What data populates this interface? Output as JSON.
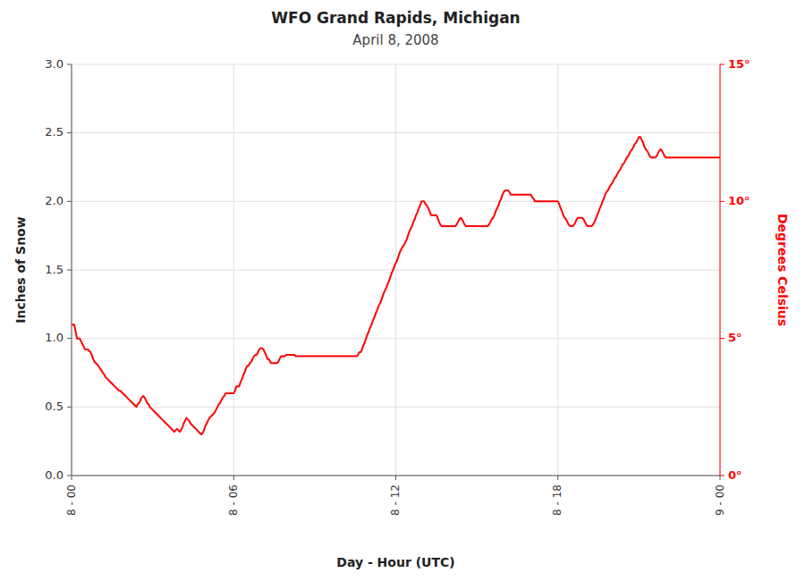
{
  "chart_data": {
    "type": "line",
    "title": "WFO Grand Rapids, Michigan",
    "subtitle": "April 8, 2008",
    "xlabel": "Day - Hour (UTC)",
    "ylabel": "Inches of Snow",
    "y2label": "Degrees Celsius",
    "color": "#FF0000",
    "grid": true,
    "xlim": [
      0,
      24
    ],
    "xticks": [
      {
        "value": 0,
        "label": "8 - 00"
      },
      {
        "value": 6,
        "label": "8 - 06"
      },
      {
        "value": 12,
        "label": "8 - 12"
      },
      {
        "value": 18,
        "label": "8 - 18"
      },
      {
        "value": 24,
        "label": "9 - 00"
      }
    ],
    "ylim": [
      0.0,
      3.0
    ],
    "yticks": [
      {
        "value": 0.0,
        "label": "0.0"
      },
      0.5,
      {
        "value": 1.0,
        "label": "1.0"
      },
      1.5,
      {
        "value": 2.0,
        "label": "2.0"
      },
      2.5,
      {
        "value": 3.0,
        "label": "3.0"
      }
    ],
    "y2lim": [
      0.0,
      15.0
    ],
    "y2ticks": [
      {
        "value": 0,
        "label": "0°"
      },
      {
        "value": 5,
        "label": "5°"
      },
      {
        "value": 10,
        "label": "10°"
      },
      {
        "value": 15,
        "label": "15°"
      }
    ],
    "x": [
      0.0,
      0.1,
      0.2,
      0.3,
      0.5,
      0.6,
      0.7,
      0.75,
      0.8,
      0.85,
      0.9,
      1.0,
      1.05,
      1.1,
      1.15,
      1.2,
      1.25,
      1.3,
      1.35,
      1.4,
      1.45,
      1.5,
      1.55,
      1.6,
      1.65,
      1.7,
      1.75,
      1.8,
      1.85,
      1.9,
      1.95,
      2.0,
      2.05,
      2.1,
      2.15,
      2.2,
      2.25,
      2.3,
      2.35,
      2.4,
      2.45,
      2.5,
      2.55,
      2.6,
      2.65,
      2.7,
      2.75,
      2.8,
      2.85,
      2.9,
      2.95,
      3.0,
      3.05,
      3.1,
      3.15,
      3.2,
      3.25,
      3.3,
      3.35,
      3.4,
      3.45,
      3.5,
      3.55,
      3.6,
      3.65,
      3.7,
      3.75,
      3.8,
      3.85,
      3.9,
      3.95,
      4.0,
      4.05,
      4.1,
      4.15,
      4.2,
      4.25,
      4.3,
      4.35,
      4.4,
      4.45,
      4.5,
      4.55,
      4.6,
      4.65,
      4.7,
      4.75,
      4.8,
      4.85,
      4.9,
      4.95,
      5.0,
      5.05,
      5.1,
      5.15,
      5.2,
      5.25,
      5.3,
      5.35,
      5.4,
      5.45,
      5.5,
      5.55,
      5.6,
      5.65,
      5.7,
      5.75,
      5.8,
      5.85,
      5.9,
      5.95,
      6.0,
      6.05,
      6.1,
      6.15,
      6.2,
      6.25,
      6.3,
      6.35,
      6.4,
      6.45,
      6.5,
      6.55,
      6.6,
      6.65,
      6.7,
      6.75,
      6.8,
      6.85,
      6.9,
      6.95,
      7.0,
      7.05,
      7.1,
      7.15,
      7.2,
      7.25,
      7.3,
      7.35,
      7.4,
      7.45,
      7.5,
      7.55,
      7.6,
      7.65,
      7.7,
      7.75,
      7.8,
      7.85,
      7.9,
      7.95,
      8.0,
      8.05,
      8.1,
      8.15,
      8.2,
      8.25,
      8.3,
      8.35,
      8.4,
      8.45,
      8.5,
      8.55,
      8.6,
      8.65,
      8.7,
      8.75,
      8.8,
      8.85,
      8.9,
      8.95,
      9.0,
      9.05,
      9.1,
      9.15,
      9.2,
      9.25,
      9.3,
      9.35,
      9.4,
      9.45,
      9.5,
      9.55,
      9.6,
      9.65,
      9.7,
      9.75,
      9.8,
      9.85,
      9.9,
      9.95,
      10.0,
      10.05,
      10.1,
      10.15,
      10.2,
      10.25,
      10.3,
      10.35,
      10.4,
      10.45,
      10.5,
      10.55,
      10.6,
      10.65,
      10.7,
      10.75,
      10.8,
      10.85,
      10.9,
      10.95,
      11.0,
      11.05,
      11.1,
      11.15,
      11.2,
      11.25,
      11.3,
      11.35,
      11.4,
      11.45,
      11.5,
      11.55,
      11.6,
      11.65,
      11.7,
      11.75,
      11.8,
      11.85,
      11.9,
      11.95,
      12.0,
      12.05,
      12.1,
      12.15,
      12.2,
      12.25,
      12.3,
      12.35,
      12.4,
      12.45,
      12.5,
      12.55,
      12.6,
      12.65,
      12.7,
      12.75,
      12.8,
      12.85,
      12.9,
      12.95,
      13.0,
      13.05,
      13.1,
      13.15,
      13.2,
      13.25,
      13.3,
      13.35,
      13.4,
      13.45,
      13.5,
      13.55,
      13.6,
      13.65,
      13.7,
      13.75,
      13.8,
      13.85,
      13.9,
      13.95,
      14.0,
      14.05,
      14.1,
      14.15,
      14.2,
      14.25,
      14.3,
      14.35,
      14.4,
      14.45,
      14.5,
      14.55,
      14.6,
      14.65,
      14.7,
      14.75,
      14.8,
      14.85,
      14.9,
      14.95,
      15.0,
      15.05,
      15.1,
      15.15,
      15.2,
      15.25,
      15.3,
      15.35,
      15.4,
      15.45,
      15.5,
      15.55,
      15.6,
      15.65,
      15.7,
      15.75,
      15.8,
      15.85,
      15.9,
      15.95,
      16.0,
      16.05,
      16.1,
      16.15,
      16.2,
      16.25,
      16.3,
      16.35,
      16.4,
      16.45,
      16.5,
      16.55,
      16.6,
      16.65,
      16.7,
      16.75,
      16.8,
      16.85,
      16.9,
      16.95,
      17.0,
      17.05,
      17.1,
      17.15,
      17.2,
      17.25,
      17.3,
      17.35,
      17.4,
      17.45,
      17.5,
      17.55,
      17.6,
      17.65,
      17.7,
      17.75,
      17.8,
      17.85,
      17.9,
      17.95,
      18.0,
      18.05,
      18.1,
      18.15,
      18.2,
      18.25,
      18.3,
      18.35,
      18.4,
      18.45,
      18.5,
      18.55,
      18.6,
      18.65,
      18.7,
      18.75,
      18.8,
      18.85,
      18.9,
      18.95,
      19.0,
      19.05,
      19.1,
      19.15,
      19.2,
      19.25,
      19.3,
      19.35,
      19.4,
      19.45,
      19.5,
      19.55,
      19.6,
      19.65,
      19.7,
      19.75,
      19.8,
      19.85,
      19.9,
      19.95,
      20.0,
      20.05,
      20.1,
      20.15,
      20.2,
      20.25,
      20.3,
      20.35,
      20.4,
      20.45,
      20.5,
      20.55,
      20.6,
      20.65,
      20.7,
      20.75,
      20.8,
      20.85,
      20.9,
      20.95,
      21.0,
      21.05,
      21.1,
      21.15,
      21.2,
      21.25,
      21.3,
      21.35,
      21.4,
      21.45,
      21.5,
      21.55,
      21.6,
      21.65,
      21.7,
      21.75,
      21.8,
      21.85,
      21.9,
      21.95,
      22.0,
      22.05,
      22.1,
      22.15,
      22.2,
      22.25,
      22.3,
      22.35,
      22.4,
      22.45,
      22.5,
      22.55,
      22.6,
      22.65,
      22.7,
      22.75,
      22.8,
      22.85,
      22.9,
      22.95,
      23.0,
      23.5,
      24.0
    ],
    "values": [
      1.1,
      1.1,
      1.0,
      1.0,
      0.92,
      0.92,
      0.9,
      0.88,
      0.85,
      0.83,
      0.82,
      0.8,
      0.78,
      0.77,
      0.75,
      0.74,
      0.72,
      0.71,
      0.7,
      0.69,
      0.68,
      0.67,
      0.66,
      0.65,
      0.64,
      0.63,
      0.62,
      0.62,
      0.61,
      0.6,
      0.59,
      0.58,
      0.57,
      0.56,
      0.55,
      0.54,
      0.53,
      0.52,
      0.51,
      0.5,
      0.52,
      0.53,
      0.55,
      0.57,
      0.58,
      0.57,
      0.55,
      0.53,
      0.52,
      0.5,
      0.49,
      0.48,
      0.47,
      0.46,
      0.45,
      0.44,
      0.43,
      0.42,
      0.41,
      0.4,
      0.39,
      0.38,
      0.37,
      0.36,
      0.35,
      0.34,
      0.33,
      0.32,
      0.33,
      0.34,
      0.33,
      0.32,
      0.33,
      0.35,
      0.38,
      0.4,
      0.42,
      0.41,
      0.4,
      0.38,
      0.37,
      0.36,
      0.35,
      0.34,
      0.33,
      0.32,
      0.31,
      0.3,
      0.31,
      0.33,
      0.36,
      0.38,
      0.4,
      0.42,
      0.43,
      0.44,
      0.45,
      0.46,
      0.48,
      0.5,
      0.52,
      0.53,
      0.55,
      0.57,
      0.58,
      0.6,
      0.6,
      0.6,
      0.6,
      0.6,
      0.6,
      0.6,
      0.62,
      0.65,
      0.65,
      0.65,
      0.68,
      0.7,
      0.73,
      0.75,
      0.78,
      0.8,
      0.8,
      0.82,
      0.83,
      0.85,
      0.87,
      0.88,
      0.88,
      0.9,
      0.92,
      0.93,
      0.93,
      0.92,
      0.9,
      0.88,
      0.85,
      0.85,
      0.83,
      0.82,
      0.82,
      0.82,
      0.82,
      0.82,
      0.83,
      0.85,
      0.87,
      0.87,
      0.87,
      0.87,
      0.88,
      0.88,
      0.88,
      0.88,
      0.88,
      0.88,
      0.88,
      0.87,
      0.87,
      0.87,
      0.87,
      0.87,
      0.87,
      0.87,
      0.87,
      0.87,
      0.87,
      0.87,
      0.87,
      0.87,
      0.87,
      0.87,
      0.87,
      0.87,
      0.87,
      0.87,
      0.87,
      0.87,
      0.87,
      0.87,
      0.87,
      0.87,
      0.87,
      0.87,
      0.87,
      0.87,
      0.87,
      0.87,
      0.87,
      0.87,
      0.87,
      0.87,
      0.87,
      0.87,
      0.87,
      0.87,
      0.87,
      0.87,
      0.87,
      0.87,
      0.87,
      0.87,
      0.87,
      0.88,
      0.9,
      0.9,
      0.92,
      0.95,
      0.97,
      1.0,
      1.03,
      1.05,
      1.08,
      1.1,
      1.13,
      1.15,
      1.18,
      1.2,
      1.23,
      1.25,
      1.27,
      1.3,
      1.33,
      1.35,
      1.37,
      1.4,
      1.42,
      1.45,
      1.48,
      1.5,
      1.53,
      1.55,
      1.57,
      1.6,
      1.63,
      1.65,
      1.67,
      1.68,
      1.7,
      1.72,
      1.75,
      1.78,
      1.8,
      1.82,
      1.85,
      1.87,
      1.9,
      1.92,
      1.95,
      1.97,
      2.0,
      2.0,
      2.0,
      1.98,
      1.97,
      1.95,
      1.93,
      1.9,
      1.9,
      1.9,
      1.9,
      1.9,
      1.88,
      1.85,
      1.83,
      1.82,
      1.82,
      1.82,
      1.82,
      1.82,
      1.82,
      1.82,
      1.82,
      1.82,
      1.82,
      1.82,
      1.83,
      1.85,
      1.87,
      1.88,
      1.87,
      1.85,
      1.83,
      1.82,
      1.82,
      1.82,
      1.82,
      1.82,
      1.82,
      1.82,
      1.82,
      1.82,
      1.82,
      1.82,
      1.82,
      1.82,
      1.82,
      1.82,
      1.82,
      1.82,
      1.83,
      1.85,
      1.87,
      1.88,
      1.9,
      1.93,
      1.95,
      1.97,
      2.0,
      2.02,
      2.05,
      2.07,
      2.08,
      2.08,
      2.08,
      2.07,
      2.05,
      2.05,
      2.05,
      2.05,
      2.05,
      2.05,
      2.05,
      2.05,
      2.05,
      2.05,
      2.05,
      2.05,
      2.05,
      2.05,
      2.05,
      2.05,
      2.03,
      2.02,
      2.0,
      2.0,
      2.0,
      2.0,
      2.0,
      2.0,
      2.0,
      2.0,
      2.0,
      2.0,
      2.0,
      2.0,
      2.0,
      2.0,
      2.0,
      2.0,
      2.0,
      2.0,
      1.98,
      1.95,
      1.93,
      1.9,
      1.88,
      1.87,
      1.85,
      1.83,
      1.82,
      1.82,
      1.82,
      1.83,
      1.85,
      1.87,
      1.88,
      1.88,
      1.88,
      1.88,
      1.87,
      1.85,
      1.83,
      1.82,
      1.82,
      1.82,
      1.82,
      1.83,
      1.85,
      1.87,
      1.9,
      1.92,
      1.95,
      1.97,
      2.0,
      2.02,
      2.05,
      2.07,
      2.08,
      2.1,
      2.12,
      2.13,
      2.15,
      2.17,
      2.18,
      2.2,
      2.22,
      2.23,
      2.25,
      2.27,
      2.28,
      2.3,
      2.32,
      2.33,
      2.35,
      2.37,
      2.38,
      2.4,
      2.42,
      2.43,
      2.45,
      2.47,
      2.47,
      2.45,
      2.43,
      2.4,
      2.38,
      2.37,
      2.35,
      2.33,
      2.32,
      2.32,
      2.32,
      2.32,
      2.33,
      2.35,
      2.37,
      2.38,
      2.37,
      2.35,
      2.33,
      2.32,
      2.32,
      2.32,
      2.32,
      2.32,
      2.32,
      2.32,
      2.32,
      2.32,
      2.32,
      2.32,
      2.32,
      2.32,
      2.32,
      2.32,
      2.32,
      2.32,
      2.32,
      2.32,
      2.32,
      2.32,
      2.32,
      2.32
    ]
  }
}
